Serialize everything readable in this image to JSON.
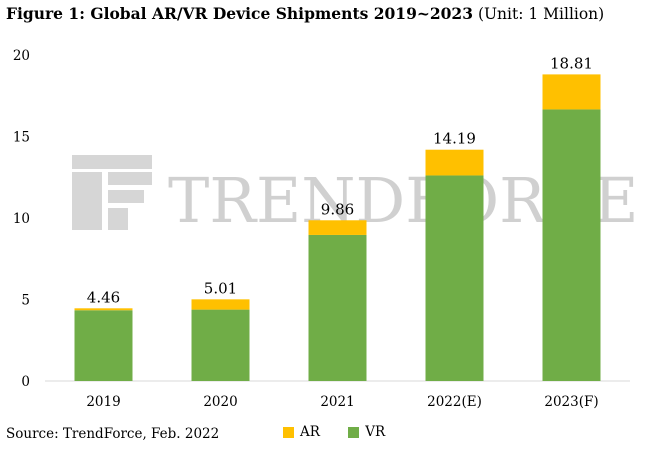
{
  "title": {
    "bold": "Figure 1: Global AR/VR Device Shipments 2019~2023",
    "unit": "(Unit: 1 Million)"
  },
  "watermark": "TRENDFORCE",
  "source": "Source: TrendForce, Feb. 2022",
  "colors": {
    "ar": "#ffc000",
    "vr": "#70ad47",
    "axis": "#d9d9d9",
    "text": "#000000"
  },
  "chart_data": {
    "type": "bar",
    "stacked": true,
    "categories": [
      "2019",
      "2020",
      "2021",
      "2022(E)",
      "2023(F)"
    ],
    "series": [
      {
        "name": "VR",
        "values": [
          4.34,
          4.38,
          8.96,
          12.61,
          16.66
        ]
      },
      {
        "name": "AR",
        "values": [
          0.12,
          0.63,
          0.9,
          1.58,
          2.15
        ]
      }
    ],
    "totals": [
      "4.46",
      "5.01",
      "9.86",
      "14.19",
      "18.81"
    ],
    "yticks": [
      0,
      5,
      10,
      15,
      20
    ],
    "ylim": [
      0,
      20
    ],
    "legend": [
      "AR",
      "VR"
    ],
    "legend_position": "bottom"
  }
}
